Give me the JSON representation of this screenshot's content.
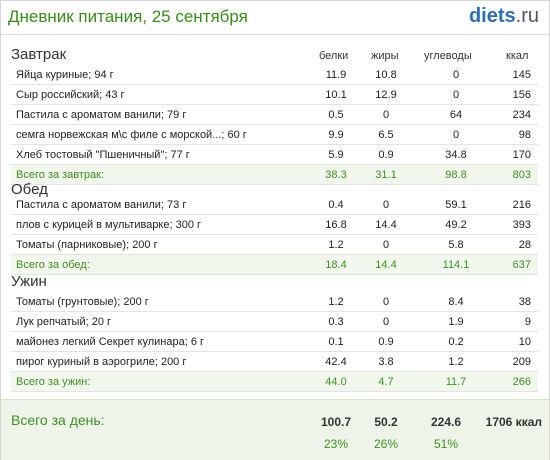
{
  "header": {
    "title": "Дневник питания, 25 сентября",
    "logo_main": "diets",
    "logo_tld": ".ru"
  },
  "columns": {
    "protein": "белки",
    "fat": "жиры",
    "carbs": "углеводы",
    "kcal": "ккал"
  },
  "meals": [
    {
      "title": "Завтрак",
      "items": [
        {
          "name": "Яйца куриные; 94 г",
          "protein": "11.9",
          "fat": "10.8",
          "carbs": "0",
          "kcal": "145"
        },
        {
          "name": "Сыр российский; 43 г",
          "protein": "10.1",
          "fat": "12.9",
          "carbs": "0",
          "kcal": "156"
        },
        {
          "name": "Пастила с ароматом ванили; 79 г",
          "protein": "0.5",
          "fat": "0",
          "carbs": "64",
          "kcal": "234"
        },
        {
          "name": "семга норвежская м\\с филе с морской...; 60 г",
          "protein": "9.9",
          "fat": "6.5",
          "carbs": "0",
          "kcal": "98"
        },
        {
          "name": "Хлеб тостовый \"Пшеничный\"; 77 г",
          "protein": "5.9",
          "fat": "0.9",
          "carbs": "34.8",
          "kcal": "170"
        }
      ],
      "total": {
        "label": "Всего за завтрак:",
        "protein": "38.3",
        "fat": "31.1",
        "carbs": "98.8",
        "kcal": "803"
      }
    },
    {
      "title": "Обед",
      "items": [
        {
          "name": "Пастила с ароматом ванили; 73 г",
          "protein": "0.4",
          "fat": "0",
          "carbs": "59.1",
          "kcal": "216"
        },
        {
          "name": "плов с курицей в мультиварке; 300 г",
          "protein": "16.8",
          "fat": "14.4",
          "carbs": "49.2",
          "kcal": "393"
        },
        {
          "name": "Томаты (парниковые); 200 г",
          "protein": "1.2",
          "fat": "0",
          "carbs": "5.8",
          "kcal": "28"
        }
      ],
      "total": {
        "label": "Всего за обед:",
        "protein": "18.4",
        "fat": "14.4",
        "carbs": "114.1",
        "kcal": "637"
      }
    },
    {
      "title": "Ужин",
      "items": [
        {
          "name": "Томаты (грунтовые); 200 г",
          "protein": "1.2",
          "fat": "0",
          "carbs": "8.4",
          "kcal": "38"
        },
        {
          "name": "Лук репчатый; 20 г",
          "protein": "0.3",
          "fat": "0",
          "carbs": "1.9",
          "kcal": "9"
        },
        {
          "name": "майонез легкий Секрет кулинара; 6 г",
          "protein": "0.1",
          "fat": "0.9",
          "carbs": "0.2",
          "kcal": "10"
        },
        {
          "name": "пирог куриный в аэрогриле; 200 г",
          "protein": "42.4",
          "fat": "3.8",
          "carbs": "1.2",
          "kcal": "209"
        }
      ],
      "total": {
        "label": "Всего за ужин:",
        "protein": "44.0",
        "fat": "4.7",
        "carbs": "11.7",
        "kcal": "266"
      }
    }
  ],
  "day": {
    "label": "Всего за день:",
    "protein": "100.7",
    "fat": "50.2",
    "carbs": "224.6",
    "kcal": "1706 ккал",
    "protein_pct": "23%",
    "fat_pct": "26%",
    "carbs_pct": "51%"
  },
  "colors": {
    "accent_green": "#3f8f22",
    "logo_blue": "#2f6fb0"
  }
}
